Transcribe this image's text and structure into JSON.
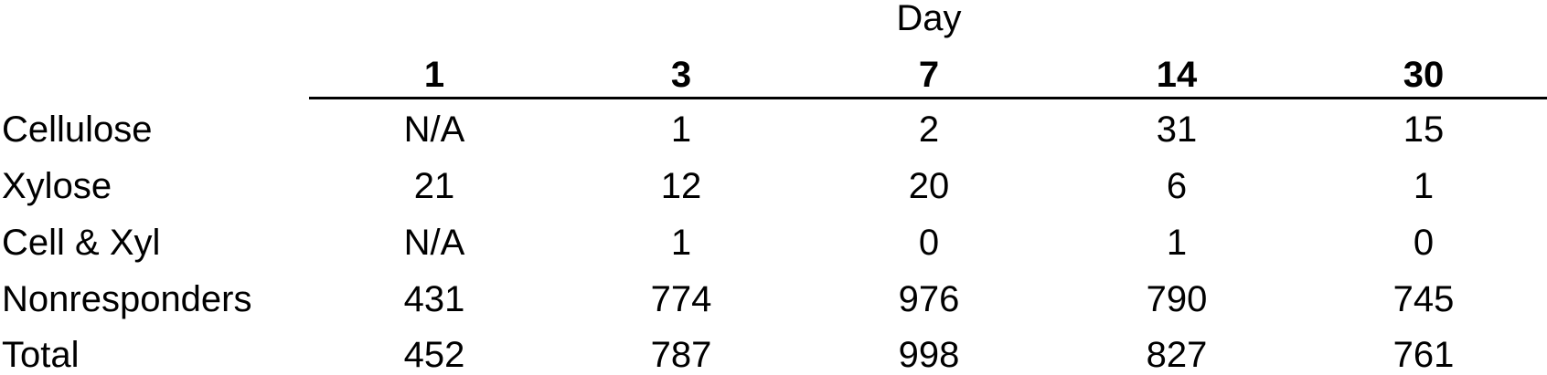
{
  "title": "Day",
  "columns": [
    "1",
    "3",
    "7",
    "14",
    "30"
  ],
  "rows": [
    {
      "label": "Cellulose",
      "values": [
        "N/A",
        "1",
        "2",
        "31",
        "15"
      ]
    },
    {
      "label": "Xylose",
      "values": [
        "21",
        "12",
        "20",
        "6",
        "1"
      ]
    },
    {
      "label": "Cell & Xyl",
      "values": [
        "N/A",
        "1",
        "0",
        "1",
        "0"
      ]
    },
    {
      "label": "Nonresponders",
      "values": [
        "431",
        "774",
        "976",
        "790",
        "745"
      ]
    },
    {
      "label": "Total",
      "values": [
        "452",
        "787",
        "998",
        "827",
        "761"
      ]
    }
  ]
}
